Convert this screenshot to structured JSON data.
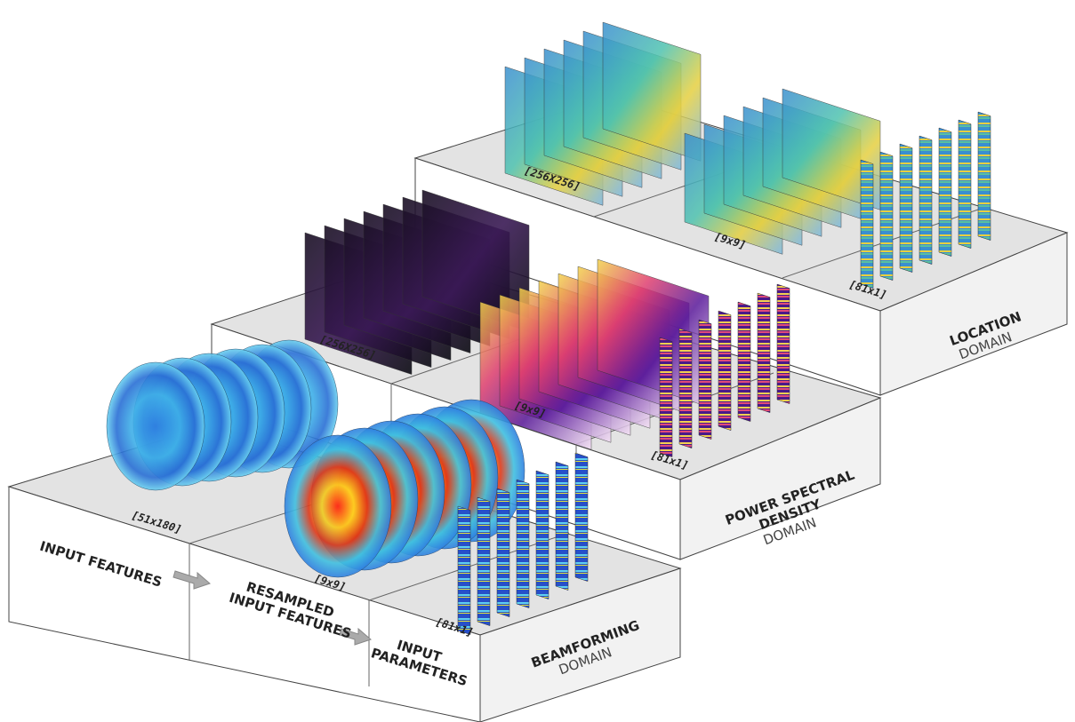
{
  "domains": [
    {
      "title_lines": [
        "LOCATION"
      ],
      "subtitle": "DOMAIN",
      "dims": [
        "[256X256]",
        "[9x9]",
        "[81x1]"
      ]
    },
    {
      "title_lines": [
        "POWER SPECTRAL",
        "DENSITY"
      ],
      "subtitle": "DOMAIN",
      "dims": [
        "[256X256]",
        "[9x9]",
        "[81x1]"
      ]
    },
    {
      "title_lines": [
        "BEAMFORMING"
      ],
      "subtitle": "DOMAIN",
      "dims": [
        "[51x180]",
        "[9x9]",
        "[81x1]"
      ],
      "stages": [
        {
          "lines": [
            "INPUT FEATURES"
          ]
        },
        {
          "lines": [
            "RESAMPLED",
            "INPUT FEATURES"
          ]
        },
        {
          "lines": [
            "INPUT",
            "PARAMETERS"
          ]
        }
      ]
    }
  ]
}
